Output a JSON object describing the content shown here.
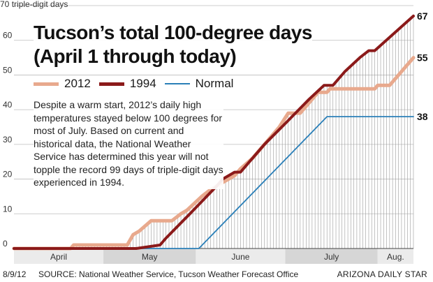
{
  "chart_data": {
    "type": "line",
    "title": "Tucson’s total 100-degree days",
    "subtitle": "(April 1 through today)",
    "ylabel": "triple-digit days",
    "ylim": [
      0,
      70
    ],
    "y_ticks": [
      0,
      10,
      20,
      30,
      40,
      50,
      60,
      70
    ],
    "x_months": [
      "April",
      "May",
      "June",
      "July",
      "Aug."
    ],
    "grid": true,
    "legend": "top-left",
    "annotation": "Despite a warm start, 2012’s daily high temperatures stayed below 100 degrees for most of July. Based on current and historical data, the National Weather Service has determined this year will not topple the record 99 days of triple-digit days experienced in 1994.",
    "end_labels": [
      "67",
      "55",
      "38"
    ],
    "series": [
      {
        "name": "2012",
        "color": "#e8a98d",
        "points": [
          [
            "Apr 1",
            0
          ],
          [
            "Apr 20",
            0
          ],
          [
            "Apr 21",
            1
          ],
          [
            "May 9",
            1
          ],
          [
            "May 11",
            4
          ],
          [
            "May 13",
            5
          ],
          [
            "May 17",
            8
          ],
          [
            "May 24",
            8
          ],
          [
            "May 27",
            10
          ],
          [
            "May 29",
            11
          ],
          [
            "Jun 3",
            15
          ],
          [
            "Jun 6",
            17
          ],
          [
            "Jun 10",
            19
          ],
          [
            "Jun 14",
            21
          ],
          [
            "Jun 16",
            23
          ],
          [
            "Jun 20",
            26
          ],
          [
            "Jun 24",
            30
          ],
          [
            "Jun 29",
            35
          ],
          [
            "Jul 2",
            39
          ],
          [
            "Jul 6",
            39
          ],
          [
            "Jul 10",
            43
          ],
          [
            "Jul 12",
            45
          ],
          [
            "Jul 15",
            45
          ],
          [
            "Jul 16",
            46
          ],
          [
            "Jul 31",
            46
          ],
          [
            "Aug 1",
            47
          ],
          [
            "Aug 5",
            47
          ],
          [
            "Aug 9",
            51
          ],
          [
            "Aug 13",
            55
          ]
        ]
      },
      {
        "name": "1994",
        "color": "#8b1a1a",
        "points": [
          [
            "Apr 1",
            0
          ],
          [
            "May 12",
            0
          ],
          [
            "May 20",
            1
          ],
          [
            "May 22",
            3
          ],
          [
            "May 30",
            10
          ],
          [
            "Jun 8",
            18
          ],
          [
            "Jun 10",
            20
          ],
          [
            "Jun 12",
            21
          ],
          [
            "Jun 14",
            22
          ],
          [
            "Jun 16",
            22
          ],
          [
            "Jun 24",
            30
          ],
          [
            "Jul 1",
            36
          ],
          [
            "Jul 9",
            43
          ],
          [
            "Jul 14",
            47
          ],
          [
            "Jul 17",
            47
          ],
          [
            "Jul 21",
            51
          ],
          [
            "Jul 26",
            55
          ],
          [
            "Jul 29",
            57
          ],
          [
            "Jul 31",
            57
          ],
          [
            "Aug 13",
            67
          ]
        ]
      },
      {
        "name": "Normal",
        "color": "#2a7fb8",
        "points": [
          [
            "Apr 1",
            0
          ],
          [
            "Jun 2",
            0
          ],
          [
            "Jul 15",
            38
          ],
          [
            "Aug 13",
            38
          ]
        ]
      }
    ]
  },
  "footer": {
    "date": "8/9/12",
    "source": "SOURCE: National Weather Service, Tucson Weather Forecast Office",
    "credit": "ARIZONA DAILY STAR"
  }
}
